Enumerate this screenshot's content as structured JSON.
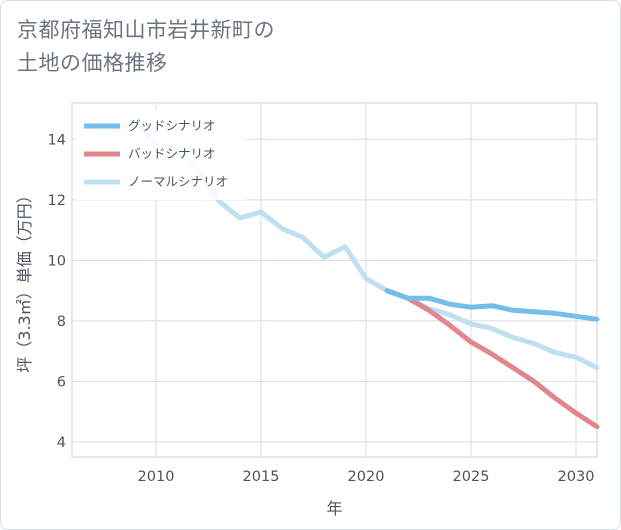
{
  "title_line1": "京都府福知山市岩井新町の",
  "title_line2": "土地の価格推移",
  "chart_data": {
    "type": "line",
    "xlabel": "年",
    "ylabel": "坪（3.3㎡）単価（万円）",
    "xlim": [
      2006,
      2031
    ],
    "ylim": [
      3.5,
      15.2
    ],
    "xticks": [
      2010,
      2015,
      2020,
      2025,
      2030
    ],
    "yticks": [
      4,
      6,
      8,
      10,
      12,
      14
    ],
    "grid": true,
    "legend_position": "top-left",
    "series": [
      {
        "name": "グッドシナリオ",
        "color": "#74bdec",
        "x": [
          2021,
          2022,
          2023,
          2024,
          2025,
          2026,
          2027,
          2028,
          2029,
          2030,
          2031
        ],
        "y": [
          9.0,
          8.75,
          8.75,
          8.55,
          8.45,
          8.5,
          8.35,
          8.3,
          8.25,
          8.15,
          8.05
        ]
      },
      {
        "name": "バッドシナリオ",
        "color": "#e0878e",
        "x": [
          2021,
          2022,
          2023,
          2024,
          2025,
          2026,
          2027,
          2028,
          2029,
          2030,
          2031
        ],
        "y": [
          9.0,
          8.75,
          8.35,
          7.85,
          7.3,
          6.9,
          6.45,
          6.0,
          5.45,
          4.95,
          4.5
        ]
      },
      {
        "name": "ノーマルシナリオ",
        "color": "#bfe0f0",
        "x": [
          2008,
          2009,
          2010,
          2011,
          2012,
          2013,
          2014,
          2015,
          2016,
          2017,
          2018,
          2019,
          2020,
          2021,
          2022,
          2023,
          2024,
          2025,
          2026,
          2027,
          2028,
          2029,
          2030,
          2031
        ],
        "y": [
          14.3,
          14.6,
          13.8,
          13.7,
          13.0,
          11.95,
          11.4,
          11.6,
          11.05,
          10.75,
          10.1,
          10.45,
          9.4,
          9.0,
          8.75,
          8.4,
          8.2,
          7.9,
          7.75,
          7.45,
          7.25,
          6.95,
          6.8,
          6.45
        ]
      }
    ]
  }
}
